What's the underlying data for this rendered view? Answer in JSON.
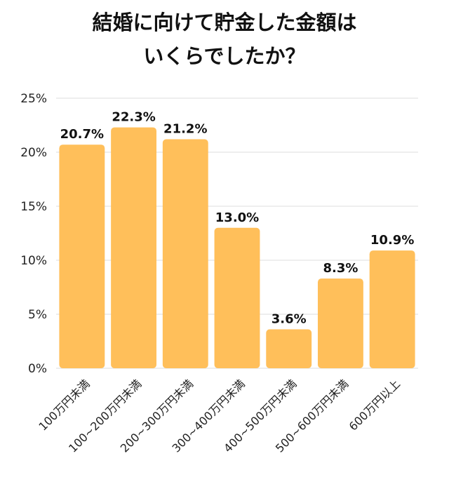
{
  "title_lines": [
    "結婚に向けて貯金した金額は",
    "いくらでしたか？"
  ],
  "chart_data": {
    "type": "bar",
    "categories": [
      "100万円未満",
      "100~200万円未満",
      "200~300万円未満",
      "300~400万円未満",
      "400~500万円未満",
      "500~600万円未満",
      "600万円以上"
    ],
    "values": [
      20.7,
      22.3,
      21.2,
      13.0,
      3.6,
      8.3,
      10.9
    ],
    "value_labels": [
      "20.7%",
      "22.3%",
      "21.2%",
      "13.0%",
      "3.6%",
      "8.3%",
      "10.9%"
    ],
    "y_ticks": [
      0,
      5,
      10,
      15,
      20,
      25
    ],
    "y_tick_labels": [
      "0%",
      "5%",
      "10%",
      "15%",
      "20%",
      "25%"
    ],
    "ylim": [
      0,
      25
    ],
    "grid": true,
    "bar_color": "#FFBF5A",
    "grid_color": "#DDDDDD"
  }
}
